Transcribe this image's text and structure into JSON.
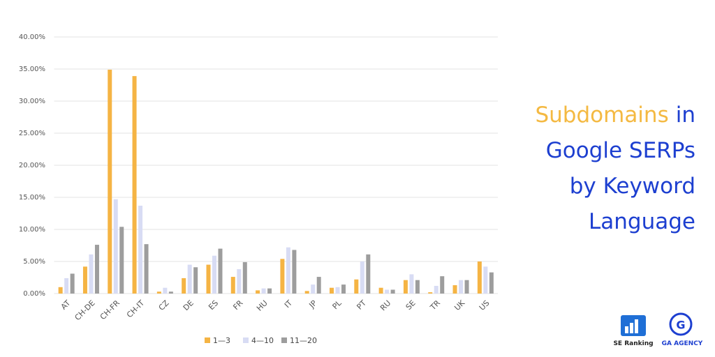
{
  "chart_data": {
    "type": "bar",
    "title": {
      "lines": [
        [
          {
            "text": "Subdomains",
            "color": "#f4b942"
          },
          {
            "text": "in",
            "color": "#1d3fd0"
          }
        ],
        [
          {
            "text": "Google SERPs",
            "color": "#1d3fd0"
          }
        ],
        [
          {
            "text": "by Keyword",
            "color": "#1d3fd0"
          }
        ],
        [
          {
            "text": "Language",
            "color": "#1d3fd0"
          }
        ]
      ]
    },
    "categories": [
      "AT",
      "CH-DE",
      "CH-FR",
      "CH-IT",
      "CZ",
      "DE",
      "ES",
      "FR",
      "HU",
      "IT",
      "JP",
      "PL",
      "PT",
      "RU",
      "SE",
      "TR",
      "UK",
      "US"
    ],
    "series": [
      {
        "name": "1—3",
        "color": "#f5b444",
        "values": [
          1.0,
          4.2,
          34.9,
          33.9,
          0.3,
          2.4,
          4.5,
          2.6,
          0.5,
          5.4,
          0.4,
          0.9,
          2.2,
          0.9,
          2.1,
          0.2,
          1.3,
          5.0
        ]
      },
      {
        "name": "4—10",
        "color": "#d8dcf4",
        "values": [
          2.4,
          6.1,
          14.7,
          13.7,
          0.9,
          4.5,
          5.9,
          3.8,
          0.8,
          7.2,
          1.4,
          1.0,
          5.0,
          0.6,
          3.0,
          1.2,
          2.1,
          4.2
        ]
      },
      {
        "name": "11—20",
        "color": "#9d9d9d",
        "values": [
          3.1,
          7.6,
          10.4,
          7.7,
          0.3,
          4.1,
          7.0,
          4.9,
          0.8,
          6.8,
          2.6,
          1.4,
          6.1,
          0.6,
          2.1,
          2.7,
          2.1,
          3.3
        ]
      }
    ],
    "ylim": [
      0,
      40
    ],
    "yticks": [
      {
        "value": 0,
        "label": "0.00%"
      },
      {
        "value": 5,
        "label": "5.00%"
      },
      {
        "value": 10,
        "label": "10.00%"
      },
      {
        "value": 15,
        "label": "15.00%"
      },
      {
        "value": 20,
        "label": "20.00%"
      },
      {
        "value": 25,
        "label": "25.00%"
      },
      {
        "value": 30,
        "label": "30.00%"
      },
      {
        "value": 35,
        "label": "35.00%"
      },
      {
        "value": 40,
        "label": "40.00%"
      }
    ],
    "grid": true,
    "legend": "bottom"
  },
  "logos": [
    "SE Ranking",
    "GA AGENCY"
  ]
}
